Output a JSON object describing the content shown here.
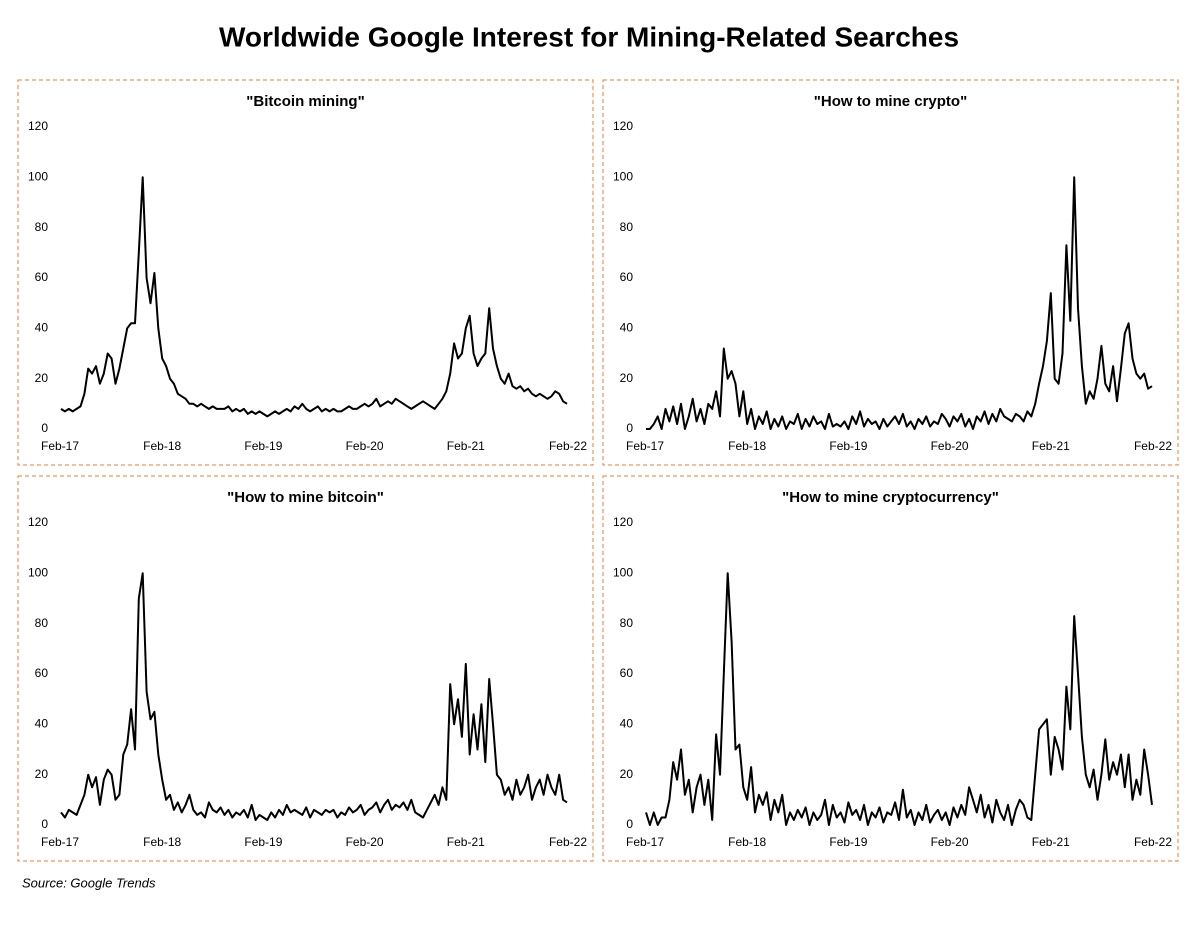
{
  "title": "Worldwide Google Interest for Mining-Related Searches",
  "source": "Source: Google Trends",
  "chart_data": [
    {
      "type": "line",
      "title": "\"Bitcoin mining\"",
      "color": "#000000",
      "categories": [
        "Feb-17",
        null,
        null,
        null,
        null,
        null,
        null,
        null,
        null,
        null,
        null,
        null,
        null,
        null,
        null,
        null,
        null,
        null,
        null,
        null,
        null,
        null,
        null,
        null,
        null,
        null,
        "Feb-18",
        null,
        null,
        null,
        null,
        null,
        null,
        null,
        null,
        null,
        null,
        null,
        null,
        null,
        null,
        null,
        null,
        null,
        null,
        null,
        null,
        null,
        null,
        null,
        null,
        null,
        "Feb-19",
        null,
        null,
        null,
        null,
        null,
        null,
        null,
        null,
        null,
        null,
        null,
        null,
        null,
        null,
        null,
        null,
        null,
        null,
        null,
        null,
        null,
        null,
        null,
        null,
        null,
        "Feb-20",
        null,
        null,
        null,
        null,
        null,
        null,
        null,
        null,
        null,
        null,
        null,
        null,
        null,
        null,
        null,
        null,
        null,
        null,
        null,
        null,
        null,
        null,
        null,
        null,
        null,
        "Feb-21",
        null,
        null,
        null,
        null,
        null,
        null,
        null,
        null,
        null,
        null,
        null,
        null,
        null,
        null,
        null,
        null,
        null,
        null,
        null,
        null,
        null,
        null,
        null,
        null,
        null,
        "Feb-22"
      ],
      "values": [
        8,
        7,
        8,
        7,
        8,
        9,
        14,
        24,
        22,
        25,
        18,
        22,
        30,
        28,
        18,
        24,
        32,
        40,
        42,
        42,
        70,
        100,
        60,
        50,
        62,
        40,
        28,
        25,
        20,
        18,
        14,
        13,
        12,
        10,
        10,
        9,
        10,
        9,
        8,
        9,
        8,
        8,
        8,
        9,
        7,
        8,
        7,
        8,
        6,
        7,
        6,
        7,
        6,
        5,
        6,
        7,
        6,
        7,
        8,
        7,
        9,
        8,
        10,
        8,
        7,
        8,
        9,
        7,
        8,
        7,
        8,
        7,
        7,
        8,
        9,
        8,
        8,
        9,
        10,
        9,
        10,
        12,
        9,
        10,
        11,
        10,
        12,
        11,
        10,
        9,
        8,
        9,
        10,
        11,
        10,
        9,
        8,
        10,
        12,
        15,
        22,
        34,
        28,
        30,
        40,
        45,
        30,
        25,
        28,
        30,
        48,
        32,
        25,
        20,
        18,
        22,
        17,
        16,
        17,
        15,
        16,
        14,
        13,
        14,
        13,
        12,
        13,
        15,
        14,
        11,
        10
      ],
      "ylim": [
        0,
        120
      ],
      "yticks": [
        0,
        20,
        40,
        60,
        80,
        100,
        120
      ]
    },
    {
      "type": "line",
      "title": "\"How to mine crypto\"",
      "color": "#000000",
      "categories": [
        "Feb-17",
        null,
        null,
        null,
        null,
        null,
        null,
        null,
        null,
        null,
        null,
        null,
        null,
        null,
        null,
        null,
        null,
        null,
        null,
        null,
        null,
        null,
        null,
        null,
        null,
        null,
        "Feb-18",
        null,
        null,
        null,
        null,
        null,
        null,
        null,
        null,
        null,
        null,
        null,
        null,
        null,
        null,
        null,
        null,
        null,
        null,
        null,
        null,
        null,
        null,
        null,
        null,
        null,
        "Feb-19",
        null,
        null,
        null,
        null,
        null,
        null,
        null,
        null,
        null,
        null,
        null,
        null,
        null,
        null,
        null,
        null,
        null,
        null,
        null,
        null,
        null,
        null,
        null,
        null,
        null,
        "Feb-20",
        null,
        null,
        null,
        null,
        null,
        null,
        null,
        null,
        null,
        null,
        null,
        null,
        null,
        null,
        null,
        null,
        null,
        null,
        null,
        null,
        null,
        null,
        null,
        null,
        null,
        "Feb-21",
        null,
        null,
        null,
        null,
        null,
        null,
        null,
        null,
        null,
        null,
        null,
        null,
        null,
        null,
        null,
        null,
        null,
        null,
        null,
        null,
        null,
        null,
        null,
        null,
        null,
        "Feb-22"
      ],
      "values": [
        0,
        0,
        2,
        5,
        0,
        8,
        3,
        9,
        2,
        10,
        0,
        5,
        12,
        3,
        8,
        2,
        10,
        8,
        15,
        5,
        32,
        20,
        23,
        18,
        5,
        15,
        2,
        8,
        0,
        5,
        2,
        7,
        0,
        4,
        1,
        5,
        0,
        3,
        2,
        6,
        0,
        4,
        1,
        5,
        2,
        3,
        0,
        6,
        1,
        2,
        1,
        3,
        0,
        5,
        2,
        7,
        1,
        4,
        2,
        3,
        0,
        4,
        1,
        3,
        5,
        2,
        6,
        1,
        3,
        0,
        4,
        2,
        5,
        1,
        3,
        2,
        6,
        4,
        1,
        5,
        3,
        6,
        1,
        4,
        0,
        5,
        3,
        7,
        2,
        6,
        3,
        8,
        5,
        4,
        3,
        6,
        5,
        3,
        7,
        5,
        10,
        18,
        25,
        35,
        54,
        20,
        18,
        30,
        73,
        43,
        100,
        48,
        25,
        10,
        15,
        12,
        20,
        33,
        18,
        15,
        25,
        11,
        24,
        38,
        42,
        28,
        22,
        20,
        22,
        16,
        17
      ],
      "ylim": [
        0,
        120
      ],
      "yticks": [
        0,
        20,
        40,
        60,
        80,
        100,
        120
      ]
    },
    {
      "type": "line",
      "title": "\"How to mine bitcoin\"",
      "color": "#000000",
      "categories": [
        "Feb-17",
        null,
        null,
        null,
        null,
        null,
        null,
        null,
        null,
        null,
        null,
        null,
        null,
        null,
        null,
        null,
        null,
        null,
        null,
        null,
        null,
        null,
        null,
        null,
        null,
        null,
        "Feb-18",
        null,
        null,
        null,
        null,
        null,
        null,
        null,
        null,
        null,
        null,
        null,
        null,
        null,
        null,
        null,
        null,
        null,
        null,
        null,
        null,
        null,
        null,
        null,
        null,
        null,
        "Feb-19",
        null,
        null,
        null,
        null,
        null,
        null,
        null,
        null,
        null,
        null,
        null,
        null,
        null,
        null,
        null,
        null,
        null,
        null,
        null,
        null,
        null,
        null,
        null,
        null,
        null,
        "Feb-20",
        null,
        null,
        null,
        null,
        null,
        null,
        null,
        null,
        null,
        null,
        null,
        null,
        null,
        null,
        null,
        null,
        null,
        null,
        null,
        null,
        null,
        null,
        null,
        null,
        null,
        "Feb-21",
        null,
        null,
        null,
        null,
        null,
        null,
        null,
        null,
        null,
        null,
        null,
        null,
        null,
        null,
        null,
        null,
        null,
        null,
        null,
        null,
        null,
        null,
        null,
        null,
        null,
        "Feb-22"
      ],
      "values": [
        5,
        3,
        6,
        5,
        4,
        8,
        12,
        20,
        15,
        19,
        8,
        18,
        22,
        20,
        10,
        12,
        28,
        32,
        46,
        30,
        90,
        100,
        53,
        42,
        45,
        28,
        18,
        10,
        12,
        6,
        9,
        5,
        8,
        12,
        6,
        4,
        5,
        3,
        9,
        6,
        5,
        7,
        4,
        6,
        3,
        5,
        4,
        6,
        3,
        8,
        2,
        4,
        3,
        2,
        5,
        3,
        6,
        4,
        8,
        5,
        6,
        5,
        4,
        7,
        3,
        6,
        5,
        4,
        6,
        5,
        6,
        3,
        5,
        4,
        7,
        5,
        6,
        8,
        4,
        6,
        7,
        9,
        5,
        8,
        10,
        6,
        8,
        7,
        9,
        6,
        10,
        5,
        4,
        3,
        6,
        9,
        12,
        8,
        15,
        10,
        56,
        40,
        50,
        35,
        64,
        28,
        44,
        30,
        48,
        25,
        58,
        40,
        20,
        18,
        12,
        15,
        10,
        18,
        12,
        15,
        20,
        10,
        15,
        18,
        12,
        20,
        15,
        12,
        20,
        10,
        9
      ],
      "ylim": [
        0,
        120
      ],
      "yticks": [
        0,
        20,
        40,
        60,
        80,
        100,
        120
      ]
    },
    {
      "type": "line",
      "title": "\"How to mine cryptocurrency\"",
      "color": "#000000",
      "categories": [
        "Feb-17",
        null,
        null,
        null,
        null,
        null,
        null,
        null,
        null,
        null,
        null,
        null,
        null,
        null,
        null,
        null,
        null,
        null,
        null,
        null,
        null,
        null,
        null,
        null,
        null,
        null,
        "Feb-18",
        null,
        null,
        null,
        null,
        null,
        null,
        null,
        null,
        null,
        null,
        null,
        null,
        null,
        null,
        null,
        null,
        null,
        null,
        null,
        null,
        null,
        null,
        null,
        null,
        null,
        "Feb-19",
        null,
        null,
        null,
        null,
        null,
        null,
        null,
        null,
        null,
        null,
        null,
        null,
        null,
        null,
        null,
        null,
        null,
        null,
        null,
        null,
        null,
        null,
        null,
        null,
        null,
        "Feb-20",
        null,
        null,
        null,
        null,
        null,
        null,
        null,
        null,
        null,
        null,
        null,
        null,
        null,
        null,
        null,
        null,
        null,
        null,
        null,
        null,
        null,
        null,
        null,
        null,
        null,
        "Feb-21",
        null,
        null,
        null,
        null,
        null,
        null,
        null,
        null,
        null,
        null,
        null,
        null,
        null,
        null,
        null,
        null,
        null,
        null,
        null,
        null,
        null,
        null,
        null,
        null,
        null,
        "Feb-22"
      ],
      "values": [
        5,
        0,
        5,
        0,
        3,
        3,
        10,
        25,
        18,
        30,
        12,
        18,
        5,
        15,
        20,
        8,
        18,
        2,
        36,
        20,
        60,
        100,
        73,
        30,
        32,
        15,
        10,
        23,
        5,
        12,
        8,
        13,
        2,
        10,
        5,
        12,
        0,
        5,
        2,
        6,
        3,
        7,
        0,
        5,
        2,
        4,
        10,
        0,
        8,
        3,
        5,
        1,
        9,
        4,
        6,
        2,
        8,
        0,
        5,
        3,
        7,
        1,
        5,
        4,
        9,
        2,
        14,
        3,
        6,
        0,
        5,
        2,
        8,
        1,
        4,
        6,
        2,
        5,
        0,
        7,
        3,
        8,
        4,
        15,
        10,
        5,
        12,
        3,
        8,
        1,
        10,
        5,
        2,
        8,
        0,
        6,
        10,
        8,
        3,
        2,
        20,
        38,
        40,
        42,
        20,
        35,
        30,
        22,
        55,
        38,
        83,
        60,
        35,
        20,
        15,
        22,
        10,
        20,
        34,
        18,
        25,
        20,
        28,
        15,
        28,
        10,
        18,
        12,
        30,
        20,
        8
      ],
      "ylim": [
        0,
        120
      ],
      "yticks": [
        0,
        20,
        40,
        60,
        80,
        100,
        120
      ]
    }
  ]
}
